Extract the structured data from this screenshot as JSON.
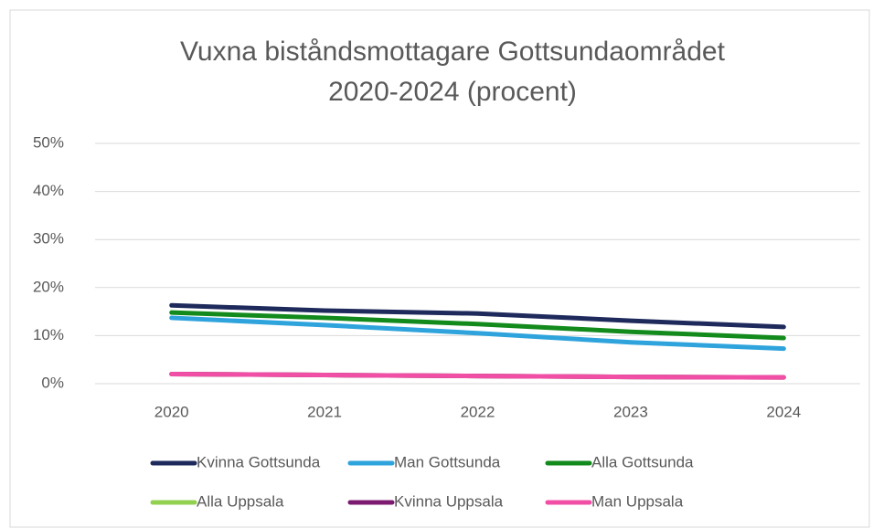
{
  "chart_data": {
    "type": "line",
    "title": [
      "Vuxna biståndsmottagare Gottsundaområdet",
      "2020-2024 (procent)"
    ],
    "categories": [
      "2020",
      "2021",
      "2022",
      "2023",
      "2024"
    ],
    "series": [
      {
        "name": "Kvinna Gottsunda",
        "color": "#1f2a5c",
        "values": [
          16.3,
          15.2,
          14.6,
          13.1,
          11.8
        ]
      },
      {
        "name": "Man Gottsunda",
        "color": "#2ea3dc",
        "values": [
          13.7,
          12.2,
          10.5,
          8.6,
          7.3
        ]
      },
      {
        "name": "Alla Gottsunda",
        "color": "#128a1c",
        "values": [
          14.8,
          13.7,
          12.4,
          10.8,
          9.5
        ]
      },
      {
        "name": "Alla Uppsala",
        "color": "#92d050",
        "values": [
          2.0,
          1.8,
          1.6,
          1.4,
          1.3
        ]
      },
      {
        "name": "Kvinna Uppsala",
        "color": "#7b1a6e",
        "values": [
          2.0,
          1.8,
          1.6,
          1.4,
          1.3
        ]
      },
      {
        "name": "Man Uppsala",
        "color": "#f04fa5",
        "values": [
          2.0,
          1.8,
          1.6,
          1.4,
          1.3
        ]
      }
    ],
    "ylim": [
      0,
      50
    ],
    "yticks": [
      {
        "value": 0,
        "label": "0%"
      },
      {
        "value": 10,
        "label": "10%"
      },
      {
        "value": 20,
        "label": "20%"
      },
      {
        "value": 30,
        "label": "30%"
      },
      {
        "value": 40,
        "label": "40%"
      },
      {
        "value": 50,
        "label": "50%"
      }
    ],
    "grid": true
  }
}
